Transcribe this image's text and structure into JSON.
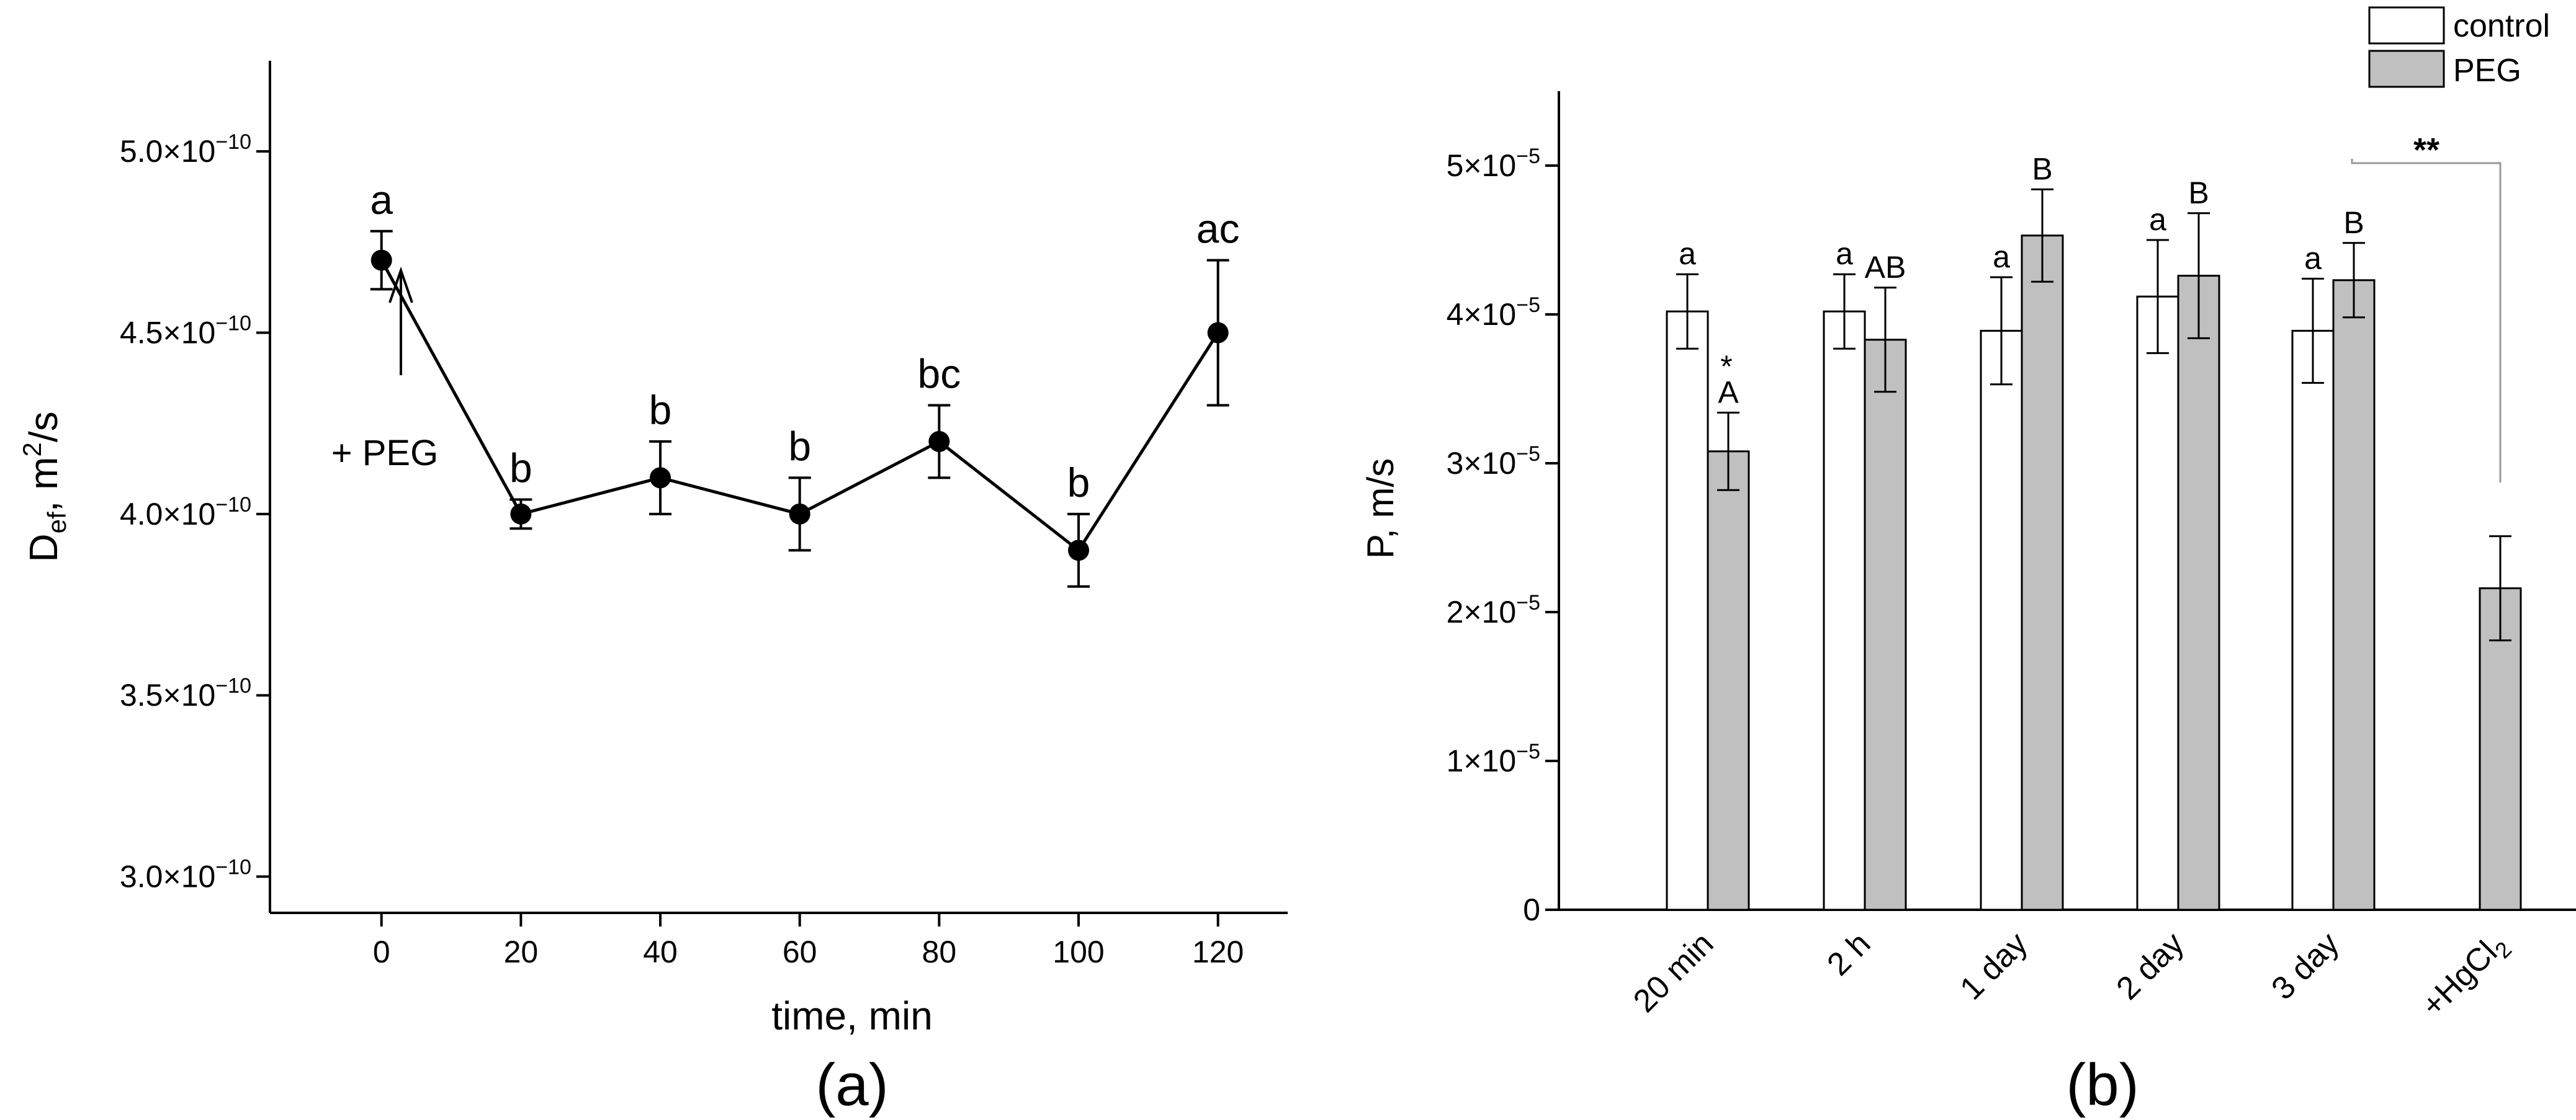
{
  "chart_data": [
    {
      "type": "line",
      "panel_label": "(a)",
      "xlabel": "time, min",
      "ylabel_main": "D",
      "ylabel_sub": "ef",
      "ylabel_rest": ", m",
      "ylabel_sup": "2",
      "ylabel_end": "/s",
      "xlim": [
        -16,
        130
      ],
      "ylim": [
        2.9e-10,
        5.25e-10
      ],
      "x_ticks": [
        0,
        20,
        40,
        60,
        80,
        100,
        120
      ],
      "x_tick_labels": [
        "0",
        "20",
        "40",
        "60",
        "80",
        "100",
        "120"
      ],
      "y_ticks": [
        3e-10,
        3.5e-10,
        4e-10,
        4.5e-10,
        5e-10
      ],
      "y_tick_labels": [
        "3.0×10",
        "3.5×10",
        "4.0×10",
        "4.5×10",
        "5.0×10"
      ],
      "y_tick_exponent": "−10",
      "x": [
        0,
        20,
        40,
        60,
        80,
        100,
        120
      ],
      "y": [
        4.7e-10,
        4e-10,
        4.1e-10,
        4e-10,
        4.2e-10,
        3.9e-10,
        4.5e-10
      ],
      "err": [
        8e-12,
        4e-12,
        1e-11,
        1e-11,
        1e-11,
        1e-11,
        2e-11
      ],
      "point_labels": [
        "a",
        "b",
        "b",
        "b",
        "bc",
        "b",
        "ac"
      ],
      "annotation": "+ PEG"
    },
    {
      "type": "bar",
      "panel_label": "(b)",
      "ylabel": "P, m/s",
      "ylim": [
        0,
        5.5e-05
      ],
      "y_ticks": [
        0,
        1e-05,
        2e-05,
        3e-05,
        4e-05,
        5e-05
      ],
      "y_tick_labels": [
        "0",
        "1×10",
        "2×10",
        "3×10",
        "4×10",
        "5×10"
      ],
      "y_tick_exponent": "−5",
      "categories": [
        "20 min",
        "2 h",
        "1 day",
        "2 day",
        "3 day",
        "+HgCl"
      ],
      "last_category_subscript": "2",
      "legend": [
        "control",
        "PEG"
      ],
      "legend_position": "top-right",
      "series": [
        {
          "name": "control",
          "color": "#ffffff",
          "values": [
            4.02e-05,
            4.02e-05,
            3.89e-05,
            4.12e-05,
            3.89e-05,
            null
          ],
          "err": [
            2.5e-06,
            2.5e-06,
            3.6e-06,
            3.8e-06,
            3.5e-06,
            null
          ],
          "labels": [
            "a",
            "a",
            "a",
            "a",
            "a",
            ""
          ]
        },
        {
          "name": "PEG",
          "color": "#c0c0c0",
          "values": [
            3.08e-05,
            3.83e-05,
            4.53e-05,
            4.26e-05,
            4.23e-05,
            2.16e-05
          ],
          "err": [
            2.6e-06,
            3.5e-06,
            3.1e-06,
            4.2e-06,
            2.5e-06,
            3.5e-06
          ],
          "labels": [
            "A",
            "AB",
            "B",
            "B",
            "B",
            ""
          ]
        }
      ],
      "annotations": [
        "*",
        "**"
      ]
    }
  ]
}
